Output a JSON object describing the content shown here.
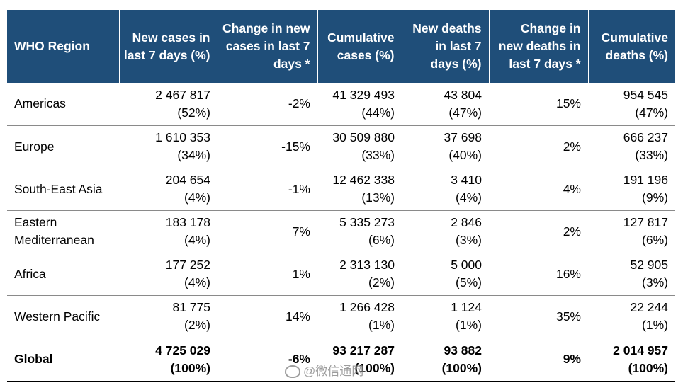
{
  "table": {
    "headers": [
      "WHO Region",
      "New cases in last 7 days (%)",
      "Change in new cases in last 7 days *",
      "Cumulative cases (%)",
      "New deaths in last 7 days (%)",
      "Change in new deaths in last 7 days *",
      "Cumulative deaths (%)"
    ],
    "rows": [
      {
        "region": "Americas",
        "new_cases": "2 467 817",
        "new_cases_pct": "(52%)",
        "change_cases": "-2%",
        "cum_cases": "41 329 493",
        "cum_cases_pct": "(44%)",
        "new_deaths": "43 804",
        "new_deaths_pct": "(47%)",
        "change_deaths": "15%",
        "cum_deaths": "954 545",
        "cum_deaths_pct": "(47%)"
      },
      {
        "region": "Europe",
        "new_cases": "1 610 353",
        "new_cases_pct": "(34%)",
        "change_cases": "-15%",
        "cum_cases": "30 509 880",
        "cum_cases_pct": "(33%)",
        "new_deaths": "37 698",
        "new_deaths_pct": "(40%)",
        "change_deaths": "2%",
        "cum_deaths": "666 237",
        "cum_deaths_pct": "(33%)"
      },
      {
        "region": "South-East Asia",
        "new_cases": "204 654",
        "new_cases_pct": "(4%)",
        "change_cases": "-1%",
        "cum_cases": "12 462 338",
        "cum_cases_pct": "(13%)",
        "new_deaths": "3 410",
        "new_deaths_pct": "(4%)",
        "change_deaths": "4%",
        "cum_deaths": "191 196",
        "cum_deaths_pct": "(9%)"
      },
      {
        "region": "Eastern Mediterranean",
        "new_cases": "183 178",
        "new_cases_pct": "(4%)",
        "change_cases": "7%",
        "cum_cases": "5 335 273",
        "cum_cases_pct": "(6%)",
        "new_deaths": "2 846",
        "new_deaths_pct": "(3%)",
        "change_deaths": "2%",
        "cum_deaths": "127 817",
        "cum_deaths_pct": "(6%)"
      },
      {
        "region": "Africa",
        "new_cases": "177 252",
        "new_cases_pct": "(4%)",
        "change_cases": "1%",
        "cum_cases": "2 313 130",
        "cum_cases_pct": "(2%)",
        "new_deaths": "5 000",
        "new_deaths_pct": "(5%)",
        "change_deaths": "16%",
        "cum_deaths": "52 905",
        "cum_deaths_pct": "(3%)"
      },
      {
        "region": "Western Pacific",
        "new_cases": "81 775",
        "new_cases_pct": "(2%)",
        "change_cases": "14%",
        "cum_cases": "1 266 428",
        "cum_cases_pct": "(1%)",
        "new_deaths": "1 124",
        "new_deaths_pct": "(1%)",
        "change_deaths": "35%",
        "cum_deaths": "22 244",
        "cum_deaths_pct": "(1%)"
      }
    ],
    "global": {
      "region": "Global",
      "new_cases": "4 725 029",
      "new_cases_pct": "(100%)",
      "change_cases": "-6%",
      "cum_cases": "93 217 287",
      "cum_cases_pct": "(100%)",
      "new_deaths": "93 882",
      "new_deaths_pct": "(100%)",
      "change_deaths": "9%",
      "cum_deaths": "2 014 957",
      "cum_deaths_pct": "(100%)"
    }
  },
  "watermark": {
    "text": "@微信通网"
  },
  "colors": {
    "header_bg": "#1f4e79",
    "header_text": "#ffffff",
    "row_divider": "#8a8a8a"
  }
}
